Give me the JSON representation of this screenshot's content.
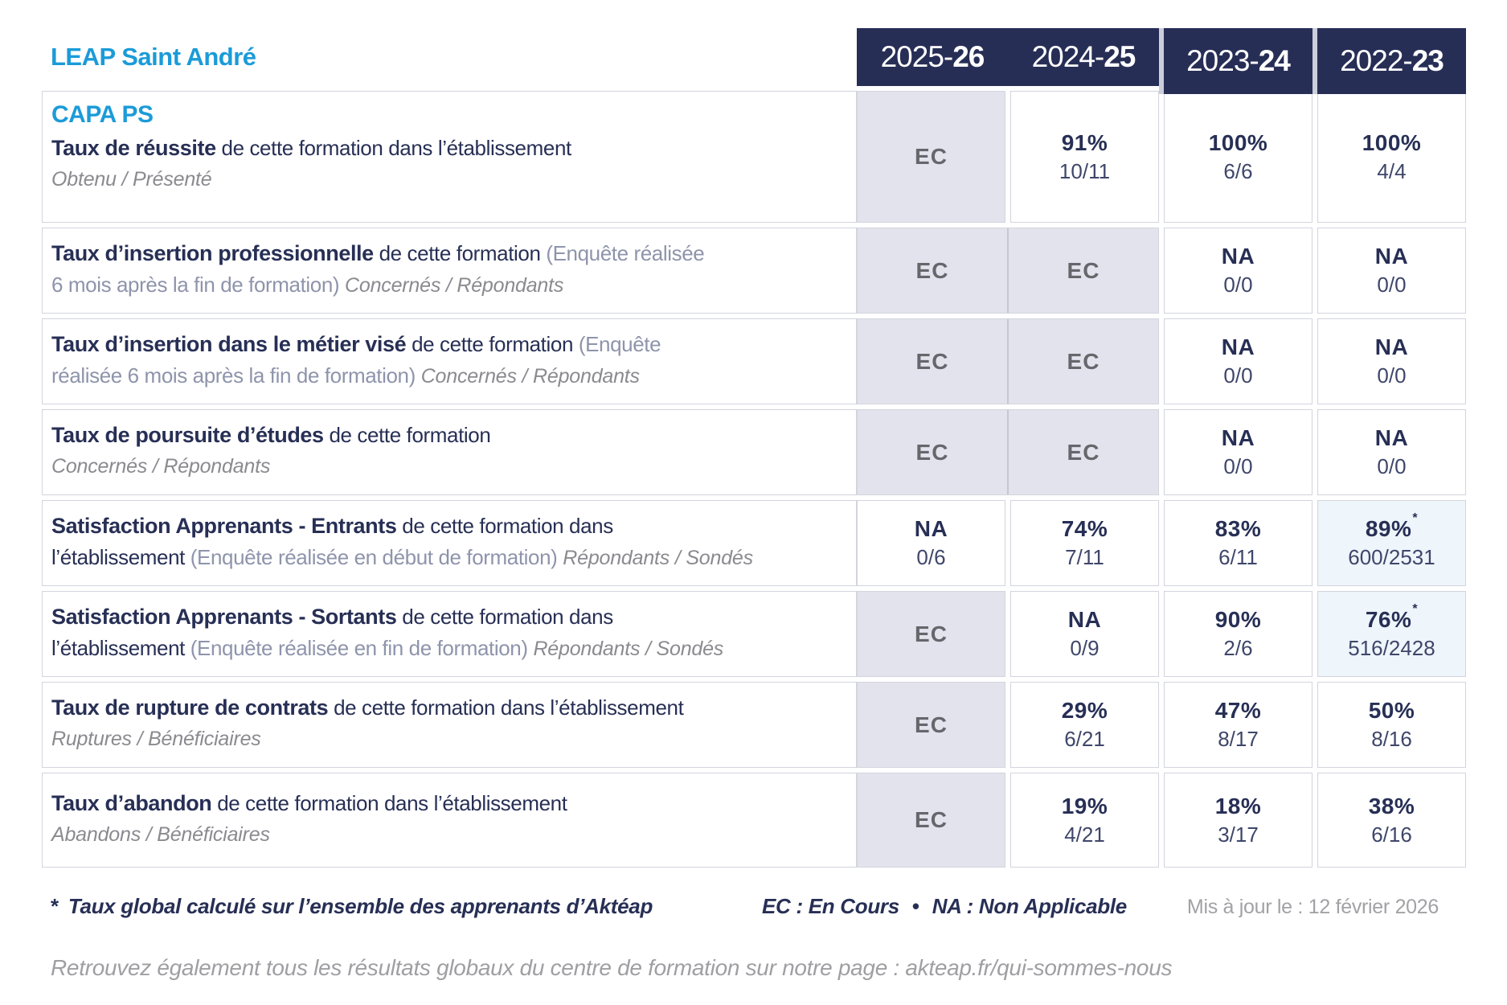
{
  "header": {
    "org": "LEAP Saint André",
    "years": [
      {
        "light": "2025-",
        "bold": "26"
      },
      {
        "light": "2024-",
        "bold": "25"
      },
      {
        "light": "2023-",
        "bold": "24"
      },
      {
        "light": "2022-",
        "bold": "23"
      }
    ]
  },
  "rows": [
    {
      "key": "taux-de-reussite",
      "heading": "CAPA PS",
      "lines": [
        [
          {
            "s": "b",
            "t": "Taux de réussite"
          },
          {
            "s": "r",
            "t": " de cette formation dans l’établissement"
          }
        ],
        [
          {
            "s": "i",
            "t": "Obtenu / Présenté"
          }
        ]
      ],
      "merged": false,
      "cells": [
        {
          "v": "EC",
          "bg": "ec"
        },
        {
          "v": "91%",
          "f": "10/11"
        },
        {
          "v": "100%",
          "f": "6/6"
        },
        {
          "v": "100%",
          "f": "4/4"
        }
      ]
    },
    {
      "key": "taux-insertion-professionnelle",
      "lines": [
        [
          {
            "s": "b",
            "t": "Taux d’insertion professionnelle"
          },
          {
            "s": "r",
            "t": " de cette formation "
          },
          {
            "s": "p",
            "t": "(Enquête réalisée"
          }
        ],
        [
          {
            "s": "p",
            "t": "6 mois après la fin de formation) "
          },
          {
            "s": "i",
            "t": "Concernés / Répondants"
          }
        ]
      ],
      "merged": true,
      "cells": [
        {
          "v": "EC",
          "bg": "ec"
        },
        {
          "v": "EC",
          "bg": "ec"
        },
        {
          "v": "NA",
          "f": "0/0"
        },
        {
          "v": "NA",
          "f": "0/0"
        }
      ]
    },
    {
      "key": "taux-insertion-metier-vise",
      "lines": [
        [
          {
            "s": "b",
            "t": "Taux d’insertion dans le métier visé"
          },
          {
            "s": "r",
            "t": " de cette formation "
          },
          {
            "s": "p",
            "t": "(Enquête"
          }
        ],
        [
          {
            "s": "p",
            "t": "réalisée 6 mois après la fin de formation) "
          },
          {
            "s": "i",
            "t": "Concernés / Répondants"
          }
        ]
      ],
      "merged": true,
      "cells": [
        {
          "v": "EC",
          "bg": "ec"
        },
        {
          "v": "EC",
          "bg": "ec"
        },
        {
          "v": "NA",
          "f": "0/0"
        },
        {
          "v": "NA",
          "f": "0/0"
        }
      ]
    },
    {
      "key": "taux-poursuite-etudes",
      "lines": [
        [
          {
            "s": "b",
            "t": "Taux de poursuite d’études"
          },
          {
            "s": "r",
            "t": " de cette formation"
          }
        ],
        [
          {
            "s": "i",
            "t": "Concernés / Répondants"
          }
        ]
      ],
      "merged": true,
      "cells": [
        {
          "v": "EC",
          "bg": "ec"
        },
        {
          "v": "EC",
          "bg": "ec"
        },
        {
          "v": "NA",
          "f": "0/0"
        },
        {
          "v": "NA",
          "f": "0/0"
        }
      ]
    },
    {
      "key": "satisfaction-entrants",
      "lines": [
        [
          {
            "s": "b",
            "t": "Satisfaction Apprenants - Entrants"
          },
          {
            "s": "r",
            "t": " de cette formation dans"
          }
        ],
        [
          {
            "s": "r",
            "t": "l’établissement "
          },
          {
            "s": "p",
            "t": "(Enquête réalisée en début de formation) "
          },
          {
            "s": "i",
            "t": "Répondants / Sondés"
          }
        ]
      ],
      "merged": false,
      "cells": [
        {
          "v": "NA",
          "f": "0/6"
        },
        {
          "v": "74%",
          "f": "7/11"
        },
        {
          "v": "83%",
          "f": "6/11"
        },
        {
          "v": "89%",
          "f": "600/2531",
          "bg": "blue",
          "sup": "*"
        }
      ]
    },
    {
      "key": "satisfaction-sortants",
      "lines": [
        [
          {
            "s": "b",
            "t": "Satisfaction Apprenants - Sortants"
          },
          {
            "s": "r",
            "t": " de cette formation dans"
          }
        ],
        [
          {
            "s": "r",
            "t": "l’établissement "
          },
          {
            "s": "p",
            "t": "(Enquête réalisée en fin de formation) "
          },
          {
            "s": "i",
            "t": "Répondants / Sondés"
          }
        ]
      ],
      "merged": false,
      "cells": [
        {
          "v": "EC",
          "bg": "ec"
        },
        {
          "v": "NA",
          "f": "0/9"
        },
        {
          "v": "90%",
          "f": "2/6"
        },
        {
          "v": "76%",
          "f": "516/2428",
          "bg": "blue",
          "sup": "*"
        }
      ]
    },
    {
      "key": "taux-rupture-contrats",
      "lines": [
        [
          {
            "s": "b",
            "t": "Taux de rupture de contrats"
          },
          {
            "s": "r",
            "t": " de cette formation dans l’établissement"
          }
        ],
        [
          {
            "s": "i",
            "t": "Ruptures / Bénéficiaires"
          }
        ]
      ],
      "merged": false,
      "cells": [
        {
          "v": "EC",
          "bg": "ec"
        },
        {
          "v": "29%",
          "f": "6/21"
        },
        {
          "v": "47%",
          "f": "8/17"
        },
        {
          "v": "50%",
          "f": "8/16"
        }
      ]
    },
    {
      "key": "taux-abandon",
      "lines": [
        [
          {
            "s": "b",
            "t": "Taux d’abandon"
          },
          {
            "s": "r",
            "t": " de cette formation dans l’établissement"
          }
        ],
        [
          {
            "s": "i",
            "t": "Abandons / Bénéficiaires"
          }
        ]
      ],
      "merged": false,
      "cells": [
        {
          "v": "EC",
          "bg": "ec"
        },
        {
          "v": "19%",
          "f": "4/21"
        },
        {
          "v": "18%",
          "f": "3/17"
        },
        {
          "v": "38%",
          "f": "6/16"
        }
      ]
    }
  ],
  "footer": {
    "star": "*",
    "note": "Taux global calculé sur l’ensemble des apprenants d’Aktéap",
    "legend_ec": "EC : En Cours",
    "legend_sep": "•",
    "legend_na": "NA : Non Applicable",
    "updated": "Mis à jour le : 12 février 2026",
    "bottom_note": "Retrouvez également tous les résultats globaux du centre de formation sur notre page : akteap.fr/qui-sommes-nous"
  },
  "colors": {
    "accent_blue": "#1b9bd8",
    "header_navy": "#272e56",
    "text_navy": "#272f55",
    "ec_background": "#e3e3ed",
    "global_rate_background": "#eef5fb",
    "cell_border": "#d3d4de"
  }
}
